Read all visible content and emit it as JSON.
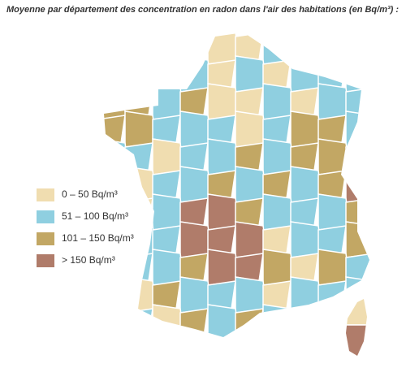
{
  "title": "Moyenne par département des concentration en radon dans l'air des habitations (en Bq/m³) :",
  "legend": [
    {
      "label": "0 – 50 Bq/m³",
      "color": "#f0ddb0"
    },
    {
      "label": "51 – 100 Bq/m³",
      "color": "#8fcfe0"
    },
    {
      "label": "101 – 150 Bq/m³",
      "color": "#c2a764"
    },
    {
      "label": "> 150 Bq/m³",
      "color": "#b07c6a"
    }
  ]
}
